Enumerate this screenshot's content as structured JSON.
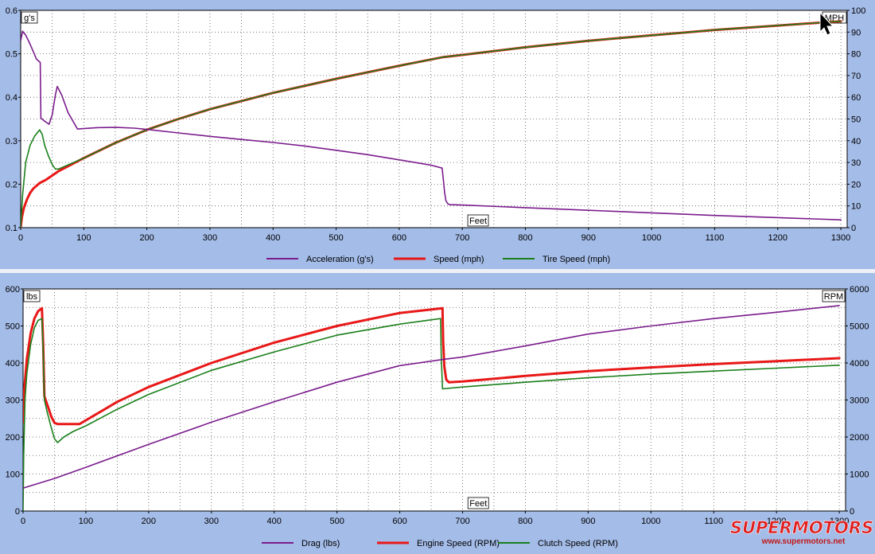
{
  "chart_data": [
    {
      "type": "line",
      "name": "top-chart",
      "left_axis_label": "g's",
      "right_axis_label": "MPH",
      "xlabel": "Feet",
      "xlim": [
        0,
        1310
      ],
      "ylim_left": [
        0.1,
        0.6
      ],
      "ylim_right": [
        0,
        100
      ],
      "x_ticks": [
        0,
        100,
        200,
        300,
        400,
        500,
        600,
        700,
        800,
        900,
        1000,
        1100,
        1200,
        1300
      ],
      "y_left_ticks": [
        "0.1",
        "0.2",
        "0.3",
        "0.4",
        "0.5",
        "0.6"
      ],
      "y_right_ticks": [
        "0",
        "10",
        "20",
        "30",
        "40",
        "50",
        "60",
        "70",
        "80",
        "90",
        "100"
      ],
      "grid": true,
      "legend_position": "bottom-center",
      "series": [
        {
          "name": "Acceleration (g's)",
          "axis": "left",
          "color": "#7a1c8c",
          "x": [
            0,
            3,
            8,
            14,
            20,
            25,
            31,
            32,
            38,
            45,
            50,
            55,
            58,
            65,
            75,
            90,
            120,
            150,
            180,
            200,
            250,
            300,
            350,
            400,
            450,
            500,
            550,
            600,
            650,
            668,
            670,
            672,
            674,
            677,
            680,
            700,
            800,
            900,
            1000,
            1100,
            1200,
            1300
          ],
          "y": [
            0.53,
            0.552,
            0.543,
            0.525,
            0.505,
            0.488,
            0.48,
            0.352,
            0.345,
            0.338,
            0.36,
            0.405,
            0.425,
            0.405,
            0.365,
            0.327,
            0.33,
            0.331,
            0.329,
            0.326,
            0.318,
            0.31,
            0.303,
            0.296,
            0.288,
            0.278,
            0.268,
            0.256,
            0.244,
            0.237,
            0.21,
            0.18,
            0.162,
            0.155,
            0.153,
            0.152,
            0.146,
            0.14,
            0.134,
            0.128,
            0.123,
            0.118
          ]
        },
        {
          "name": "Speed (mph)",
          "axis": "right",
          "color": "#e81818",
          "x": [
            0,
            2,
            5,
            10,
            15,
            20,
            30,
            40,
            50,
            60,
            80,
            100,
            150,
            200,
            250,
            300,
            400,
            500,
            600,
            670,
            700,
            800,
            900,
            1000,
            1100,
            1200,
            1300
          ],
          "y": [
            0,
            5,
            9,
            13,
            16,
            18,
            20.5,
            22,
            24,
            26,
            29,
            32,
            39,
            45,
            50,
            54.5,
            62,
            68.5,
            74.5,
            78.5,
            79.5,
            83,
            86,
            88.5,
            91,
            93,
            95
          ]
        },
        {
          "name": "Tire Speed (mph)",
          "axis": "right",
          "color": "#1a7f1a",
          "x": [
            0,
            3,
            8,
            15,
            22,
            30,
            34,
            38,
            44,
            50,
            55,
            60,
            80,
            100,
            150,
            200,
            250,
            300,
            400,
            500,
            600,
            670,
            700,
            800,
            900,
            1000,
            1100,
            1200,
            1300
          ],
          "y": [
            0,
            15,
            30,
            38,
            42,
            45,
            43,
            38,
            33,
            29,
            27,
            27,
            29.5,
            32,
            39,
            45,
            50,
            54.5,
            62,
            68.5,
            74.5,
            78.5,
            79.5,
            83,
            86,
            88.5,
            91,
            93,
            95
          ]
        }
      ]
    },
    {
      "type": "line",
      "name": "bottom-chart",
      "left_axis_label": "lbs",
      "right_axis_label": "RPM",
      "xlabel": "Feet",
      "xlim": [
        0,
        1310
      ],
      "ylim_left": [
        0,
        600
      ],
      "ylim_right": [
        0,
        6000
      ],
      "x_ticks": [
        0,
        100,
        200,
        300,
        400,
        500,
        600,
        700,
        800,
        900,
        1000,
        1100,
        1200,
        1300
      ],
      "y_left_ticks": [
        "0",
        "100",
        "200",
        "300",
        "400",
        "500",
        "600"
      ],
      "y_right_ticks": [
        "0",
        "1000",
        "2000",
        "3000",
        "4000",
        "5000",
        "6000"
      ],
      "grid": true,
      "legend_position": "bottom-center",
      "series": [
        {
          "name": "Drag (lbs)",
          "axis": "left",
          "color": "#7a1c8c",
          "x": [
            0,
            50,
            100,
            200,
            300,
            400,
            500,
            600,
            670,
            700,
            800,
            900,
            1000,
            1100,
            1200,
            1300
          ],
          "y": [
            62,
            88,
            118,
            180,
            240,
            295,
            348,
            393,
            410,
            416,
            446,
            478,
            500,
            520,
            537,
            555
          ]
        },
        {
          "name": "Engine Speed (RPM)",
          "axis": "right",
          "color": "#e81818",
          "x": [
            0,
            2,
            6,
            12,
            18,
            24,
            30,
            32,
            34,
            38,
            45,
            50,
            55,
            60,
            70,
            80,
            90,
            100,
            150,
            200,
            300,
            400,
            500,
            600,
            668,
            669,
            671,
            674,
            678,
            700,
            800,
            900,
            1000,
            1100,
            1200,
            1300
          ],
          "y": [
            2400,
            3300,
            4100,
            4800,
            5200,
            5400,
            5480,
            4500,
            3100,
            2900,
            2550,
            2380,
            2350,
            2350,
            2350,
            2350,
            2350,
            2450,
            2950,
            3350,
            4000,
            4550,
            5000,
            5350,
            5480,
            4600,
            3900,
            3550,
            3480,
            3500,
            3650,
            3780,
            3880,
            3970,
            4050,
            4130
          ]
        },
        {
          "name": "Clutch Speed (RPM)",
          "axis": "right",
          "color": "#1a7f1a",
          "x": [
            0,
            1,
            3,
            6,
            12,
            18,
            24,
            30,
            32,
            34,
            38,
            45,
            50,
            55,
            65,
            80,
            100,
            150,
            200,
            300,
            400,
            500,
            600,
            665,
            666,
            668,
            700,
            800,
            900,
            1000,
            1100,
            1200,
            1300
          ],
          "y": [
            0,
            1500,
            3000,
            3700,
            4500,
            4950,
            5150,
            5200,
            4300,
            3000,
            2700,
            2250,
            1950,
            1850,
            2000,
            2150,
            2300,
            2750,
            3150,
            3800,
            4300,
            4750,
            5050,
            5200,
            4200,
            3300,
            3350,
            3480,
            3600,
            3700,
            3780,
            3860,
            3940
          ]
        }
      ]
    }
  ],
  "watermark": {
    "brand": "SUPERMOTORS",
    "url": "www.supermotors.net",
    "color": "#e02020"
  }
}
